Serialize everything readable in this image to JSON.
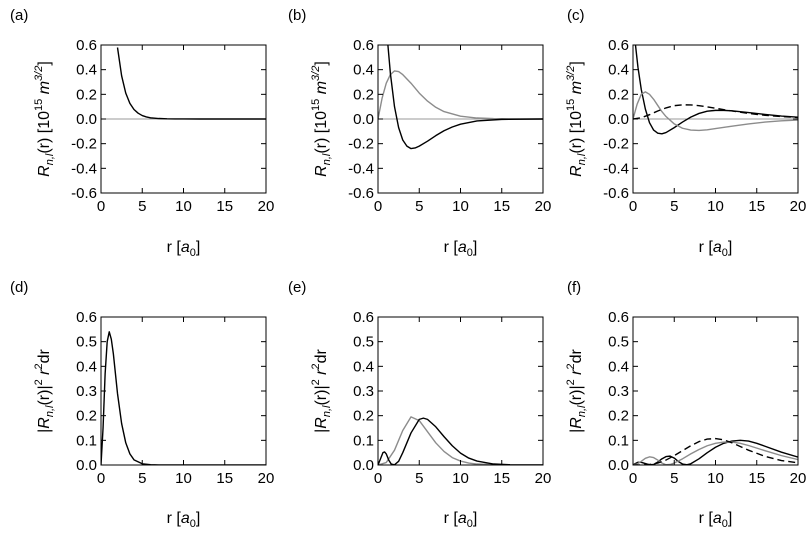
{
  "chart_data": [
    {
      "panel": "a",
      "panel_label": "(a)",
      "type": "line",
      "xlabel": "r [a0]",
      "ylabel": "Rn,l(r) [10^15 m^3/2]",
      "xlim": [
        0,
        20
      ],
      "ylim": [
        -0.6,
        0.6
      ],
      "xticks": [
        "0",
        "5",
        "10",
        "15",
        "20"
      ],
      "yticks": [
        "-0.6",
        "-0.4",
        "-0.2",
        "0.0",
        "0.2",
        "0.4",
        "0.6"
      ],
      "zero_line": true,
      "series": [
        {
          "color": "#000000",
          "dash": "solid",
          "x": [
            2.0,
            2.5,
            3.0,
            3.5,
            4.0,
            4.5,
            5.0,
            5.5,
            6.0,
            7.0,
            8.0,
            9.0,
            10.0,
            12.0,
            15.0,
            20.0
          ],
          "y": [
            0.58,
            0.35,
            0.21,
            0.127,
            0.077,
            0.047,
            0.028,
            0.017,
            0.01,
            0.004,
            0.0013,
            0.0005,
            0.0002,
            0.0,
            0.0,
            0.0
          ]
        }
      ]
    },
    {
      "panel": "b",
      "panel_label": "(b)",
      "type": "line",
      "xlabel": "r [a0]",
      "ylabel": "Rn,l(r) [10^15 m^3/2]",
      "xlim": [
        0,
        20
      ],
      "ylim": [
        -0.6,
        0.6
      ],
      "xticks": [
        "0",
        "5",
        "10",
        "15",
        "20"
      ],
      "yticks": [
        "-0.6",
        "-0.4",
        "-0.2",
        "0.0",
        "0.2",
        "0.4",
        "0.6"
      ],
      "zero_line": true,
      "series": [
        {
          "color": "#8c8c8c",
          "dash": "solid",
          "x": [
            0.0,
            0.5,
            1.0,
            1.5,
            2.0,
            2.5,
            3.0,
            4.0,
            5.0,
            6.0,
            7.0,
            8.0,
            10.0,
            12.0,
            14.0,
            16.0,
            20.0
          ],
          "y": [
            0.0,
            0.17,
            0.29,
            0.36,
            0.39,
            0.385,
            0.36,
            0.29,
            0.21,
            0.145,
            0.095,
            0.06,
            0.023,
            0.008,
            0.003,
            0.001,
            0.0
          ]
        },
        {
          "color": "#000000",
          "dash": "solid",
          "x": [
            1.2,
            1.5,
            2.0,
            2.5,
            3.0,
            3.5,
            4.0,
            4.5,
            5.0,
            6.0,
            7.0,
            8.0,
            9.0,
            10.0,
            12.0,
            15.0,
            20.0
          ],
          "y": [
            0.6,
            0.37,
            0.1,
            -0.07,
            -0.17,
            -0.22,
            -0.24,
            -0.235,
            -0.22,
            -0.18,
            -0.135,
            -0.095,
            -0.065,
            -0.042,
            -0.016,
            -0.003,
            0.0
          ]
        }
      ]
    },
    {
      "panel": "c",
      "panel_label": "(c)",
      "type": "line",
      "xlabel": "r [a0]",
      "ylabel": "Rn,l(r) [10^15 m^3/2]",
      "xlim": [
        0,
        20
      ],
      "ylim": [
        -0.6,
        0.6
      ],
      "xticks": [
        "0",
        "5",
        "10",
        "15",
        "20"
      ],
      "yticks": [
        "-0.6",
        "-0.4",
        "-0.2",
        "0.0",
        "0.2",
        "0.4",
        "0.6"
      ],
      "zero_line": true,
      "series": [
        {
          "color": "#000000",
          "dash": "solid",
          "x": [
            0.3,
            0.6,
            1.0,
            1.5,
            2.0,
            2.5,
            3.0,
            3.5,
            4.0,
            5.0,
            6.0,
            7.0,
            8.0,
            9.0,
            10.0,
            11.0,
            12.0,
            14.0,
            16.0,
            18.0,
            20.0
          ],
          "y": [
            0.6,
            0.42,
            0.24,
            0.08,
            -0.03,
            -0.09,
            -0.115,
            -0.12,
            -0.11,
            -0.07,
            -0.025,
            0.015,
            0.045,
            0.063,
            0.07,
            0.07,
            0.066,
            0.052,
            0.037,
            0.024,
            0.015
          ]
        },
        {
          "color": "#8c8c8c",
          "dash": "solid",
          "x": [
            0.0,
            0.5,
            1.0,
            1.5,
            2.0,
            2.5,
            3.0,
            3.5,
            4.0,
            5.0,
            6.0,
            7.0,
            8.0,
            9.0,
            10.0,
            12.0,
            14.0,
            16.0,
            18.0,
            20.0
          ],
          "y": [
            0.0,
            0.12,
            0.2,
            0.22,
            0.2,
            0.16,
            0.11,
            0.06,
            0.02,
            -0.04,
            -0.075,
            -0.09,
            -0.093,
            -0.088,
            -0.078,
            -0.058,
            -0.04,
            -0.025,
            -0.015,
            -0.009
          ]
        },
        {
          "color": "#000000",
          "dash": "dashed",
          "x": [
            0.0,
            1.0,
            2.0,
            3.0,
            4.0,
            5.0,
            6.0,
            7.0,
            8.0,
            9.0,
            10.0,
            12.0,
            14.0,
            16.0,
            18.0,
            20.0
          ],
          "y": [
            0.0,
            0.01,
            0.035,
            0.065,
            0.09,
            0.108,
            0.115,
            0.114,
            0.108,
            0.098,
            0.087,
            0.065,
            0.045,
            0.03,
            0.02,
            0.012
          ]
        }
      ]
    },
    {
      "panel": "d",
      "panel_label": "(d)",
      "type": "line",
      "xlabel": "r [a0]",
      "ylabel": "|Rn,l(r)|^2 r^2 dr",
      "xlim": [
        0,
        20
      ],
      "ylim": [
        0,
        0.6
      ],
      "xticks": [
        "0",
        "5",
        "10",
        "15",
        "20"
      ],
      "yticks": [
        "0.0",
        "0.1",
        "0.2",
        "0.3",
        "0.4",
        "0.5",
        "0.6"
      ],
      "zero_line": false,
      "series": [
        {
          "color": "#000000",
          "dash": "solid",
          "x": [
            0.0,
            0.25,
            0.5,
            0.75,
            1.0,
            1.25,
            1.5,
            2.0,
            2.5,
            3.0,
            3.5,
            4.0,
            5.0,
            6.0,
            7.0,
            20.0
          ],
          "y": [
            0.0,
            0.15,
            0.37,
            0.5,
            0.54,
            0.51,
            0.45,
            0.29,
            0.168,
            0.09,
            0.045,
            0.021,
            0.005,
            0.001,
            0.0,
            0.0
          ]
        }
      ]
    },
    {
      "panel": "e",
      "panel_label": "(e)",
      "type": "line",
      "xlabel": "r [a0]",
      "ylabel": "|Rn,l(r)|^2 r^2 dr",
      "xlim": [
        0,
        20
      ],
      "ylim": [
        0,
        0.6
      ],
      "xticks": [
        "0",
        "5",
        "10",
        "15",
        "20"
      ],
      "yticks": [
        "0.0",
        "0.1",
        "0.2",
        "0.3",
        "0.4",
        "0.5",
        "0.6"
      ],
      "zero_line": false,
      "series": [
        {
          "color": "#8c8c8c",
          "dash": "solid",
          "x": [
            0.0,
            1.0,
            2.0,
            3.0,
            4.0,
            5.0,
            6.0,
            7.0,
            8.0,
            9.0,
            10.0,
            11.0,
            12.0,
            14.0,
            16.0,
            20.0
          ],
          "y": [
            0.0,
            0.01,
            0.06,
            0.14,
            0.195,
            0.18,
            0.135,
            0.09,
            0.055,
            0.03,
            0.016,
            0.008,
            0.004,
            0.001,
            0.0,
            0.0
          ]
        },
        {
          "color": "#000000",
          "dash": "solid",
          "x": [
            0.0,
            0.3,
            0.6,
            0.8,
            1.0,
            1.3,
            1.6,
            2.0,
            2.5,
            3.0,
            4.0,
            5.0,
            5.5,
            6.0,
            7.0,
            8.0,
            9.0,
            10.0,
            11.0,
            12.0,
            14.0,
            16.0,
            20.0
          ],
          "y": [
            0.0,
            0.025,
            0.05,
            0.053,
            0.045,
            0.02,
            0.004,
            0.001,
            0.015,
            0.05,
            0.13,
            0.185,
            0.19,
            0.185,
            0.155,
            0.115,
            0.078,
            0.048,
            0.028,
            0.016,
            0.004,
            0.001,
            0.0
          ]
        }
      ]
    },
    {
      "panel": "f",
      "panel_label": "(f)",
      "type": "line",
      "xlabel": "r [a0]",
      "ylabel": "|Rn,l(r)|^2 r^2 dr",
      "xlim": [
        0,
        20
      ],
      "ylim": [
        0,
        0.6
      ],
      "xticks": [
        "0",
        "5",
        "10",
        "15",
        "20"
      ],
      "yticks": [
        "0.0",
        "0.1",
        "0.2",
        "0.3",
        "0.4",
        "0.5",
        "0.6"
      ],
      "zero_line": false,
      "series": [
        {
          "color": "#000000",
          "dash": "solid",
          "x": [
            0.0,
            0.3,
            0.6,
            1.0,
            1.5,
            2.0,
            2.5,
            3.0,
            3.5,
            4.0,
            4.5,
            5.0,
            5.5,
            6.0,
            6.5,
            7.0,
            8.0,
            9.0,
            10.0,
            11.0,
            12.0,
            13.0,
            14.0,
            15.0,
            16.0,
            18.0,
            20.0
          ],
          "y": [
            0.0,
            0.006,
            0.011,
            0.011,
            0.006,
            0.001,
            0.002,
            0.012,
            0.025,
            0.034,
            0.036,
            0.028,
            0.014,
            0.004,
            0.001,
            0.005,
            0.025,
            0.05,
            0.072,
            0.088,
            0.097,
            0.1,
            0.097,
            0.088,
            0.076,
            0.052,
            0.032
          ]
        },
        {
          "color": "#8c8c8c",
          "dash": "solid",
          "x": [
            0.0,
            0.5,
            1.0,
            1.5,
            2.0,
            2.5,
            3.0,
            3.5,
            4.0,
            4.5,
            5.0,
            6.0,
            7.0,
            8.0,
            9.0,
            10.0,
            11.0,
            12.0,
            13.0,
            14.0,
            16.0,
            18.0,
            20.0
          ],
          "y": [
            0.0,
            0.004,
            0.015,
            0.027,
            0.033,
            0.03,
            0.02,
            0.008,
            0.001,
            0.002,
            0.008,
            0.025,
            0.045,
            0.063,
            0.078,
            0.088,
            0.093,
            0.093,
            0.088,
            0.079,
            0.058,
            0.038,
            0.022
          ]
        },
        {
          "color": "#000000",
          "dash": "dashed",
          "x": [
            0.0,
            1.0,
            2.0,
            3.0,
            4.0,
            5.0,
            6.0,
            7.0,
            8.0,
            9.0,
            10.0,
            11.0,
            12.0,
            13.0,
            14.0,
            16.0,
            18.0,
            20.0
          ],
          "y": [
            0.0,
            0.0,
            0.002,
            0.008,
            0.02,
            0.038,
            0.058,
            0.078,
            0.095,
            0.105,
            0.107,
            0.102,
            0.09,
            0.075,
            0.06,
            0.035,
            0.018,
            0.009
          ]
        }
      ]
    }
  ]
}
